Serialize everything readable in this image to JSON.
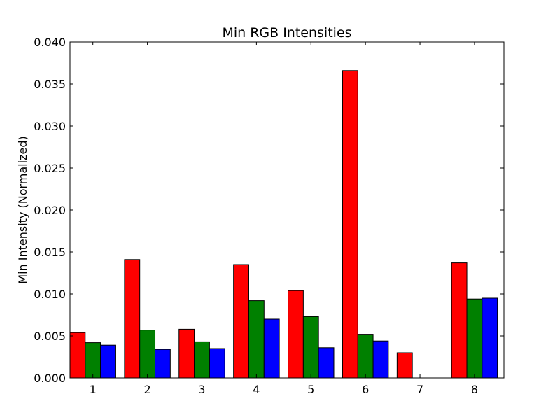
{
  "chart_data": {
    "type": "bar",
    "title": "Min RGB Intensities",
    "xlabel": "",
    "ylabel": "Min Intensity (Normalized)",
    "categories": [
      "1",
      "2",
      "3",
      "4",
      "5",
      "6",
      "7",
      "8"
    ],
    "series": [
      {
        "color": "#ff0000",
        "values": [
          0.0054,
          0.0141,
          0.0058,
          0.0135,
          0.0104,
          0.0366,
          0.003,
          0.0137
        ]
      },
      {
        "color": "#008000",
        "values": [
          0.0042,
          0.0057,
          0.0043,
          0.0092,
          0.0073,
          0.0052,
          0.0,
          0.0094
        ]
      },
      {
        "color": "#0000ff",
        "values": [
          0.0039,
          0.0034,
          0.0035,
          0.007,
          0.0036,
          0.0044,
          0.0,
          0.0095
        ]
      }
    ],
    "ylim": [
      0,
      0.04
    ],
    "yticks": [
      "0.000",
      "0.005",
      "0.010",
      "0.015",
      "0.020",
      "0.025",
      "0.030",
      "0.035",
      "0.040"
    ],
    "grid": false,
    "legend": "none"
  }
}
